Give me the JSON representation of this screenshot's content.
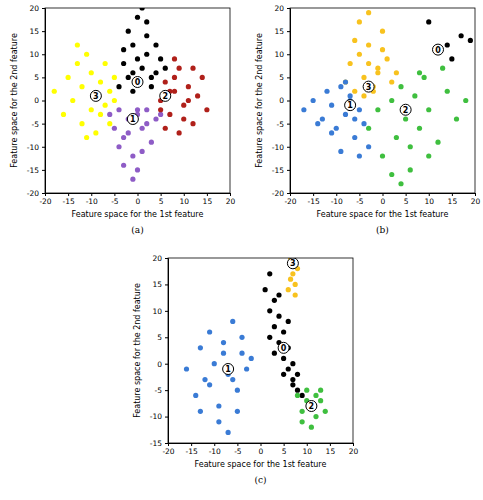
{
  "chart_data": [
    {
      "type": "scatter",
      "title": "(a)",
      "x_label": "Feature space for the 1st feature",
      "y_label": "Feature space for the 2nd feature",
      "xlim": [
        -20,
        20
      ],
      "xticks": [
        -20,
        -15,
        -10,
        -5,
        0,
        5,
        10,
        15,
        20
      ],
      "ylim": [
        -20,
        20
      ],
      "yticks": [
        -20,
        -15,
        -10,
        -5,
        0,
        5,
        10,
        15,
        20
      ],
      "grid": false,
      "series": [
        {
          "name": "3",
          "color": "#ffff00",
          "centroid": [
            -9,
            1
          ],
          "x": [
            -18,
            -16,
            -15,
            -14,
            -13,
            -12,
            -12,
            -11,
            -10,
            -10,
            -9,
            -9,
            -8,
            -8,
            -7,
            -7,
            -6,
            -6,
            -5,
            -5,
            -11,
            -13
          ],
          "values": [
            2,
            -3,
            5,
            0,
            8,
            -5,
            3,
            10,
            -2,
            6,
            1,
            -7,
            4,
            -3,
            8,
            -1,
            2,
            -5,
            5,
            0,
            -8,
            12
          ]
        },
        {
          "name": "0",
          "color": "#000000",
          "centroid": [
            0,
            4
          ],
          "x": [
            -4,
            -3,
            -2,
            -1,
            0,
            1,
            2,
            3,
            4,
            5,
            -2,
            0,
            2,
            -1,
            1,
            3,
            -3,
            0,
            4,
            6,
            2,
            -1
          ],
          "values": [
            3,
            8,
            5,
            12,
            4,
            7,
            10,
            3,
            6,
            9,
            15,
            18,
            14,
            2,
            20,
            5,
            11,
            9,
            12,
            7,
            17,
            6
          ]
        },
        {
          "name": "1",
          "color": "#8e5cc6",
          "centroid": [
            -1,
            -4
          ],
          "x": [
            -6,
            -5,
            -4,
            -3,
            -2,
            -1,
            0,
            1,
            2,
            3,
            4,
            -3,
            -1,
            1,
            -2,
            0,
            2,
            -4,
            0,
            5
          ],
          "values": [
            -3,
            -6,
            -2,
            -8,
            -4,
            -12,
            -3,
            -6,
            -2,
            -9,
            -4,
            -14,
            -17,
            -11,
            -7,
            -15,
            -5,
            -10,
            -2,
            -3
          ]
        },
        {
          "name": "2",
          "color": "#b0201a",
          "centroid": [
            6,
            1
          ],
          "x": [
            5,
            6,
            7,
            8,
            9,
            10,
            11,
            12,
            13,
            14,
            6,
            8,
            10,
            12,
            7,
            9,
            11,
            15,
            5,
            8
          ],
          "values": [
            0,
            4,
            -3,
            2,
            7,
            -1,
            3,
            -5,
            1,
            5,
            -6,
            9,
            -4,
            7,
            2,
            -7,
            0,
            -2,
            -2,
            5
          ]
        }
      ]
    },
    {
      "type": "scatter",
      "title": "(b)",
      "x_label": "Feature space for the 1st feature",
      "y_label": "Feature space for the 2nd feature",
      "xlim": [
        -20,
        20
      ],
      "xticks": [
        -20,
        -15,
        -10,
        -5,
        0,
        5,
        10,
        15,
        20
      ],
      "ylim": [
        -20,
        20
      ],
      "yticks": [
        -20,
        -15,
        -10,
        -5,
        0,
        5,
        10,
        15,
        20
      ],
      "grid": false,
      "series": [
        {
          "name": "3",
          "color": "#f8c21e",
          "centroid": [
            -3,
            3
          ],
          "x": [
            -8,
            -7,
            -6,
            -5,
            -4,
            -3,
            -2,
            -1,
            0,
            1,
            2,
            -5,
            -3,
            -1,
            -4,
            -2,
            0,
            -6,
            3,
            -3
          ],
          "values": [
            4,
            8,
            2,
            10,
            5,
            12,
            3,
            7,
            15,
            9,
            4,
            17,
            19,
            6,
            1,
            2,
            11,
            13,
            6,
            8
          ]
        },
        {
          "name": "1",
          "color": "#3a7bd5",
          "centroid": [
            -7,
            -1
          ],
          "x": [
            -17,
            -15,
            -13,
            -12,
            -11,
            -10,
            -9,
            -8,
            -7,
            -6,
            -5,
            -4,
            -3,
            -9,
            -7,
            -5,
            -11,
            -8,
            -14,
            -6
          ],
          "values": [
            -2,
            0,
            -4,
            2,
            -1,
            -6,
            3,
            -3,
            0,
            -8,
            -2,
            -5,
            -10,
            -11,
            1,
            -12,
            -7,
            4,
            -5,
            -4
          ]
        },
        {
          "name": "2",
          "color": "#3fbf3f",
          "centroid": [
            5,
            -2
          ],
          "x": [
            -3,
            -1,
            0,
            2,
            3,
            4,
            5,
            6,
            7,
            8,
            9,
            10,
            12,
            14,
            16,
            18,
            4,
            6,
            8,
            2,
            10,
            13
          ],
          "values": [
            -6,
            -2,
            -12,
            0,
            -8,
            3,
            -4,
            -15,
            1,
            -6,
            5,
            -2,
            -9,
            2,
            -4,
            0,
            -18,
            -10,
            6,
            -16,
            -12,
            7
          ]
        },
        {
          "name": "0",
          "color": "#000000",
          "centroid": [
            12,
            11
          ],
          "x": [
            12,
            14,
            17,
            10,
            19,
            15
          ],
          "values": [
            11,
            12,
            14,
            17,
            13,
            9
          ]
        }
      ]
    },
    {
      "type": "scatter",
      "title": "(c)",
      "x_label": "Feature space for the 1st feature",
      "y_label": "Feature space for the 2nd feature",
      "xlim": [
        -20,
        20
      ],
      "xticks": [
        -20,
        -15,
        -10,
        -5,
        0,
        5,
        10,
        15,
        20
      ],
      "ylim": [
        -15,
        20
      ],
      "yticks": [
        -15,
        -10,
        -5,
        0,
        5,
        10,
        15,
        20
      ],
      "grid": false,
      "series": [
        {
          "name": "1",
          "color": "#3a7bd5",
          "centroid": [
            -7,
            -1
          ],
          "x": [
            -16,
            -14,
            -13,
            -12,
            -11,
            -10,
            -9,
            -8,
            -7,
            -6,
            -5,
            -4,
            -3,
            -2,
            -9,
            -7,
            -5,
            -11,
            -8,
            -6,
            -13,
            -4
          ],
          "values": [
            -1,
            -6,
            3,
            -3,
            6,
            0,
            -8,
            4,
            -2,
            8,
            -5,
            2,
            -1,
            1,
            -11,
            -13,
            -9,
            -4,
            2,
            -3,
            -9,
            5
          ]
        },
        {
          "name": "0",
          "color": "#000000",
          "centroid": [
            5,
            3
          ],
          "x": [
            1,
            2,
            2,
            3,
            3,
            4,
            4,
            5,
            5,
            6,
            6,
            7,
            7,
            8,
            8,
            9,
            2,
            3,
            5,
            6,
            4,
            7
          ],
          "values": [
            14,
            17,
            10,
            12,
            7,
            9,
            4,
            6,
            1,
            3,
            -1,
            0,
            -3,
            -2,
            -5,
            -6,
            5,
            2,
            -2,
            8,
            13,
            -4
          ]
        },
        {
          "name": "2",
          "color": "#3fbf3f",
          "centroid": [
            11,
            -8
          ],
          "x": [
            8,
            9,
            10,
            11,
            12,
            13,
            14,
            9,
            11,
            13,
            10,
            12
          ],
          "values": [
            -6,
            -9,
            -5,
            -8,
            -10,
            -7,
            -9,
            -11,
            -12,
            -5,
            -7,
            -6
          ]
        },
        {
          "name": "3",
          "color": "#f8c21e",
          "centroid": [
            7,
            19
          ],
          "x": [
            6,
            6.5,
            7,
            7,
            7.5,
            8,
            6.5,
            7.5
          ],
          "values": [
            14,
            16,
            17,
            19,
            15,
            18,
            20,
            13
          ]
        }
      ]
    }
  ]
}
